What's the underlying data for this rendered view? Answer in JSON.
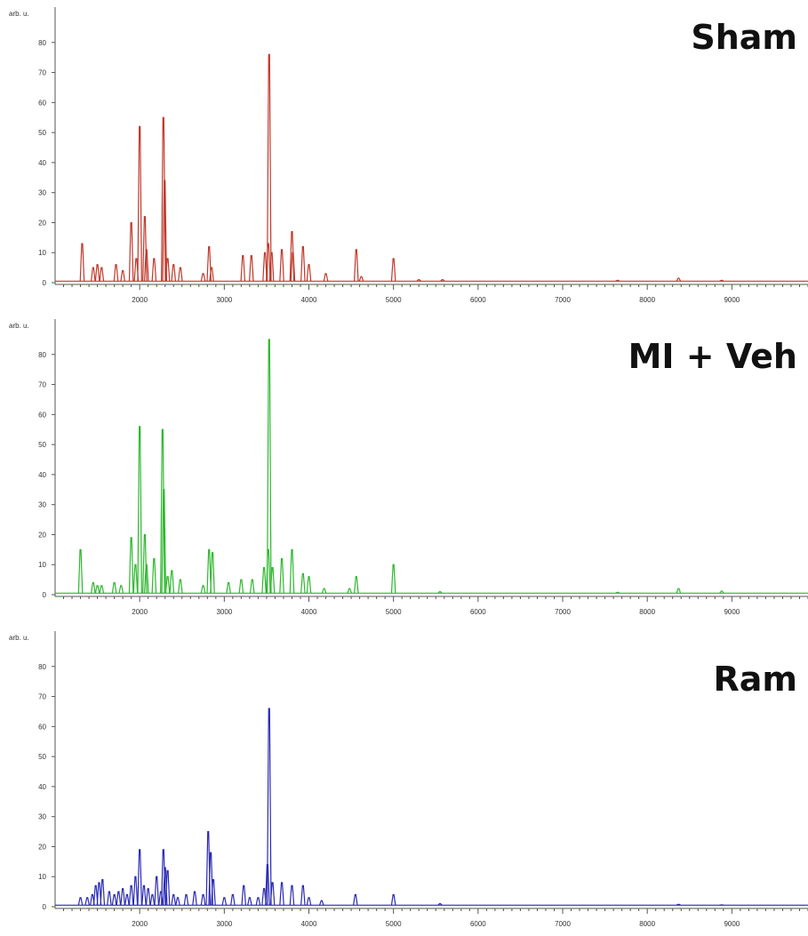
{
  "chart_data": [
    {
      "type": "line",
      "title": "Sham",
      "ylabel": "arb. u.",
      "color": "#c0392b",
      "xlim": [
        1000,
        9900
      ],
      "ylim": [
        0,
        90
      ],
      "xticks": [
        2000,
        3000,
        4000,
        5000,
        6000,
        7000,
        8000,
        9000
      ],
      "yticks": [
        0,
        10,
        20,
        30,
        40,
        50,
        60,
        70,
        80
      ],
      "baseline": 0.5,
      "peaks": [
        {
          "x": 1320,
          "y": 13
        },
        {
          "x": 1450,
          "y": 5
        },
        {
          "x": 1500,
          "y": 6
        },
        {
          "x": 1550,
          "y": 5
        },
        {
          "x": 1720,
          "y": 6
        },
        {
          "x": 1800,
          "y": 4
        },
        {
          "x": 1900,
          "y": 20
        },
        {
          "x": 1960,
          "y": 8
        },
        {
          "x": 2000,
          "y": 52
        },
        {
          "x": 2060,
          "y": 22
        },
        {
          "x": 2080,
          "y": 11
        },
        {
          "x": 2170,
          "y": 8
        },
        {
          "x": 2280,
          "y": 55
        },
        {
          "x": 2295,
          "y": 34
        },
        {
          "x": 2330,
          "y": 8
        },
        {
          "x": 2400,
          "y": 6
        },
        {
          "x": 2480,
          "y": 5
        },
        {
          "x": 2750,
          "y": 3
        },
        {
          "x": 2820,
          "y": 12
        },
        {
          "x": 2850,
          "y": 5
        },
        {
          "x": 3220,
          "y": 9
        },
        {
          "x": 3320,
          "y": 9
        },
        {
          "x": 3480,
          "y": 10
        },
        {
          "x": 3520,
          "y": 13
        },
        {
          "x": 3530,
          "y": 76
        },
        {
          "x": 3560,
          "y": 10
        },
        {
          "x": 3680,
          "y": 11
        },
        {
          "x": 3800,
          "y": 17
        },
        {
          "x": 3810,
          "y": 10
        },
        {
          "x": 3930,
          "y": 12
        },
        {
          "x": 4000,
          "y": 6
        },
        {
          "x": 4200,
          "y": 3
        },
        {
          "x": 4560,
          "y": 11
        },
        {
          "x": 4620,
          "y": 2
        },
        {
          "x": 5000,
          "y": 8
        },
        {
          "x": 5300,
          "y": 1
        },
        {
          "x": 5580,
          "y": 1
        },
        {
          "x": 7650,
          "y": 0.8
        },
        {
          "x": 8370,
          "y": 1.5
        },
        {
          "x": 8880,
          "y": 0.8
        }
      ]
    },
    {
      "type": "line",
      "title": "MI + Veh",
      "ylabel": "arb. u.",
      "color": "#2eb82e",
      "xlim": [
        1000,
        9900
      ],
      "ylim": [
        0,
        90
      ],
      "xticks": [
        2000,
        3000,
        4000,
        5000,
        6000,
        7000,
        8000,
        9000
      ],
      "yticks": [
        0,
        10,
        20,
        30,
        40,
        50,
        60,
        70,
        80
      ],
      "baseline": 0.5,
      "peaks": [
        {
          "x": 1300,
          "y": 15
        },
        {
          "x": 1450,
          "y": 4
        },
        {
          "x": 1500,
          "y": 3
        },
        {
          "x": 1550,
          "y": 3
        },
        {
          "x": 1700,
          "y": 4
        },
        {
          "x": 1780,
          "y": 3
        },
        {
          "x": 1900,
          "y": 19
        },
        {
          "x": 1950,
          "y": 10
        },
        {
          "x": 2000,
          "y": 56
        },
        {
          "x": 2060,
          "y": 20
        },
        {
          "x": 2080,
          "y": 10
        },
        {
          "x": 2170,
          "y": 12
        },
        {
          "x": 2270,
          "y": 55
        },
        {
          "x": 2285,
          "y": 35
        },
        {
          "x": 2330,
          "y": 6
        },
        {
          "x": 2380,
          "y": 8
        },
        {
          "x": 2480,
          "y": 5
        },
        {
          "x": 2750,
          "y": 3
        },
        {
          "x": 2820,
          "y": 15
        },
        {
          "x": 2860,
          "y": 14
        },
        {
          "x": 3050,
          "y": 4
        },
        {
          "x": 3200,
          "y": 5
        },
        {
          "x": 3330,
          "y": 5
        },
        {
          "x": 3470,
          "y": 9
        },
        {
          "x": 3520,
          "y": 15
        },
        {
          "x": 3530,
          "y": 85
        },
        {
          "x": 3570,
          "y": 9
        },
        {
          "x": 3680,
          "y": 12
        },
        {
          "x": 3800,
          "y": 15
        },
        {
          "x": 3930,
          "y": 7
        },
        {
          "x": 4000,
          "y": 6
        },
        {
          "x": 4180,
          "y": 2
        },
        {
          "x": 4480,
          "y": 2
        },
        {
          "x": 4560,
          "y": 6
        },
        {
          "x": 5000,
          "y": 10
        },
        {
          "x": 5550,
          "y": 1
        },
        {
          "x": 7650,
          "y": 0.8
        },
        {
          "x": 8370,
          "y": 2
        },
        {
          "x": 8880,
          "y": 1.2
        }
      ]
    },
    {
      "type": "line",
      "title": "Ram",
      "ylabel": "arb. u.",
      "color": "#2a2ab5",
      "xlim": [
        1000,
        9900
      ],
      "ylim": [
        0,
        90
      ],
      "xticks": [
        2000,
        3000,
        4000,
        5000,
        6000,
        7000,
        8000,
        9000
      ],
      "yticks": [
        0,
        10,
        20,
        30,
        40,
        50,
        60,
        70,
        80
      ],
      "baseline": 0.5,
      "peaks": [
        {
          "x": 1300,
          "y": 3
        },
        {
          "x": 1380,
          "y": 3
        },
        {
          "x": 1440,
          "y": 4
        },
        {
          "x": 1480,
          "y": 7
        },
        {
          "x": 1520,
          "y": 8
        },
        {
          "x": 1560,
          "y": 9
        },
        {
          "x": 1640,
          "y": 5
        },
        {
          "x": 1700,
          "y": 4
        },
        {
          "x": 1750,
          "y": 5
        },
        {
          "x": 1800,
          "y": 6
        },
        {
          "x": 1850,
          "y": 4
        },
        {
          "x": 1900,
          "y": 7
        },
        {
          "x": 1950,
          "y": 10
        },
        {
          "x": 2000,
          "y": 19
        },
        {
          "x": 2050,
          "y": 7
        },
        {
          "x": 2100,
          "y": 6
        },
        {
          "x": 2150,
          "y": 4
        },
        {
          "x": 2200,
          "y": 10
        },
        {
          "x": 2250,
          "y": 5
        },
        {
          "x": 2280,
          "y": 19
        },
        {
          "x": 2300,
          "y": 13
        },
        {
          "x": 2330,
          "y": 12
        },
        {
          "x": 2400,
          "y": 4
        },
        {
          "x": 2450,
          "y": 3
        },
        {
          "x": 2550,
          "y": 4
        },
        {
          "x": 2650,
          "y": 5
        },
        {
          "x": 2750,
          "y": 4
        },
        {
          "x": 2810,
          "y": 25
        },
        {
          "x": 2840,
          "y": 18
        },
        {
          "x": 2870,
          "y": 9
        },
        {
          "x": 3000,
          "y": 3
        },
        {
          "x": 3100,
          "y": 4
        },
        {
          "x": 3230,
          "y": 7
        },
        {
          "x": 3300,
          "y": 3
        },
        {
          "x": 3400,
          "y": 3
        },
        {
          "x": 3470,
          "y": 6
        },
        {
          "x": 3510,
          "y": 14
        },
        {
          "x": 3530,
          "y": 66
        },
        {
          "x": 3570,
          "y": 8
        },
        {
          "x": 3680,
          "y": 8
        },
        {
          "x": 3800,
          "y": 7
        },
        {
          "x": 3930,
          "y": 7
        },
        {
          "x": 4000,
          "y": 3
        },
        {
          "x": 4150,
          "y": 2
        },
        {
          "x": 4550,
          "y": 4
        },
        {
          "x": 5000,
          "y": 4
        },
        {
          "x": 5550,
          "y": 1
        },
        {
          "x": 8370,
          "y": 0.8
        },
        {
          "x": 8880,
          "y": 0.6
        }
      ]
    }
  ]
}
